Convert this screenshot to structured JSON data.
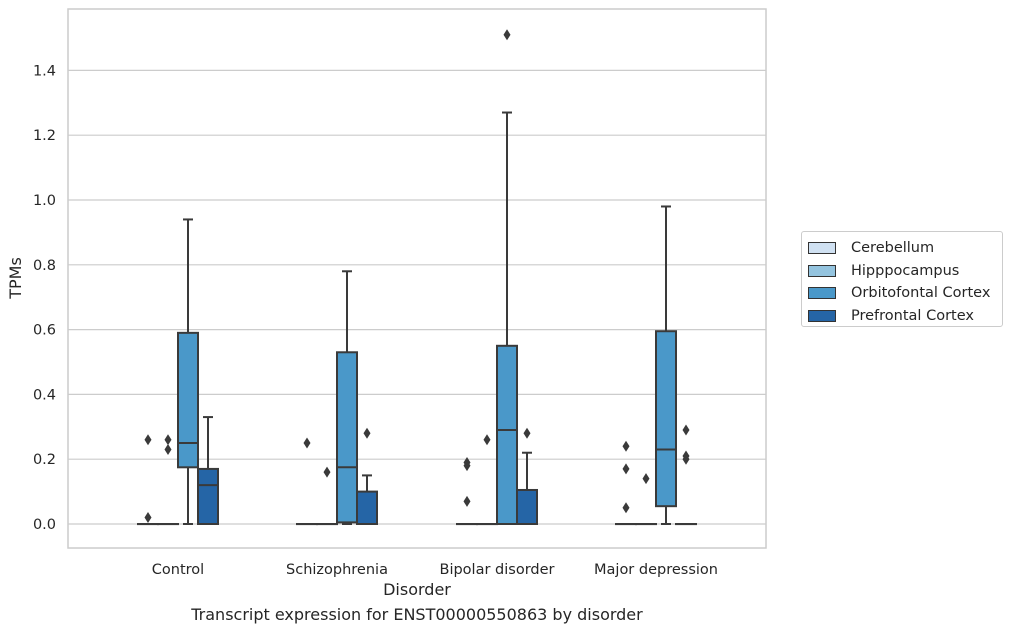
{
  "chart_data": {
    "type": "boxplot",
    "caption": "Transcript expression for ENST00000550863 by disorder",
    "xlabel": "Disorder",
    "ylabel": "TPMs",
    "ylim": [
      -0.075,
      1.58
    ],
    "yticks": [
      "0.0",
      "0.2",
      "0.4",
      "0.6",
      "0.8",
      "1.0",
      "1.2",
      "1.4"
    ],
    "grid": "horizontal",
    "legend_position": "right",
    "categories": [
      "Control",
      "Schizophrenia",
      "Bipolar disorder",
      "Major depression"
    ],
    "series": [
      {
        "name": "Cerebellum",
        "color": "#d0e1f2",
        "boxes": [
          {
            "q1": 0,
            "median": 0,
            "q3": 0,
            "whisker_low": 0,
            "whisker_high": 0,
            "outliers": [
              0.02,
              0.26
            ]
          },
          {
            "q1": 0,
            "median": 0,
            "q3": 0,
            "whisker_low": 0,
            "whisker_high": 0,
            "outliers": [
              0.25
            ]
          },
          {
            "q1": 0,
            "median": 0,
            "q3": 0,
            "whisker_low": 0,
            "whisker_high": 0,
            "outliers": [
              0.07,
              0.18,
              0.19
            ]
          },
          {
            "q1": 0,
            "median": 0,
            "q3": 0,
            "whisker_low": 0,
            "whisker_high": 0,
            "outliers": [
              0.05,
              0.17,
              0.24
            ]
          }
        ]
      },
      {
        "name": "Hipppocampus",
        "color": "#94c4df",
        "boxes": [
          {
            "q1": 0,
            "median": 0,
            "q3": 0,
            "whisker_low": 0,
            "whisker_high": 0,
            "outliers": [
              0.23,
              0.26
            ]
          },
          {
            "q1": 0,
            "median": 0,
            "q3": 0,
            "whisker_low": 0,
            "whisker_high": 0,
            "outliers": [
              0.16
            ]
          },
          {
            "q1": 0,
            "median": 0,
            "q3": 0,
            "whisker_low": 0,
            "whisker_high": 0,
            "outliers": [
              0.26
            ]
          },
          {
            "q1": 0,
            "median": 0,
            "q3": 0,
            "whisker_low": 0,
            "whisker_high": 0,
            "outliers": [
              0.14
            ]
          }
        ]
      },
      {
        "name": "Orbitofontal Cortex",
        "color": "#4a98c9",
        "boxes": [
          {
            "q1": 0.175,
            "median": 0.25,
            "q3": 0.59,
            "whisker_low": 0,
            "whisker_high": 0.94,
            "outliers": []
          },
          {
            "q1": 0.005,
            "median": 0.175,
            "q3": 0.53,
            "whisker_low": 0,
            "whisker_high": 0.78,
            "outliers": []
          },
          {
            "q1": 0.0,
            "median": 0.29,
            "q3": 0.55,
            "whisker_low": 0,
            "whisker_high": 1.27,
            "outliers": [
              1.51
            ]
          },
          {
            "q1": 0.055,
            "median": 0.23,
            "q3": 0.595,
            "whisker_low": 0,
            "whisker_high": 0.98,
            "outliers": []
          }
        ]
      },
      {
        "name": "Prefrontal Cortex",
        "color": "#2565a6",
        "boxes": [
          {
            "q1": 0,
            "median": 0.12,
            "q3": 0.17,
            "whisker_low": 0,
            "whisker_high": 0.33,
            "outliers": []
          },
          {
            "q1": 0,
            "median": 0,
            "q3": 0.1,
            "whisker_low": 0,
            "whisker_high": 0.15,
            "outliers": [
              0.28
            ]
          },
          {
            "q1": 0,
            "median": 0,
            "q3": 0.105,
            "whisker_low": 0,
            "whisker_high": 0.22,
            "outliers": [
              0.28
            ]
          },
          {
            "q1": 0,
            "median": 0,
            "q3": 0,
            "whisker_low": 0,
            "whisker_high": 0,
            "outliers": [
              0.2,
              0.21,
              0.29
            ]
          }
        ]
      }
    ]
  }
}
